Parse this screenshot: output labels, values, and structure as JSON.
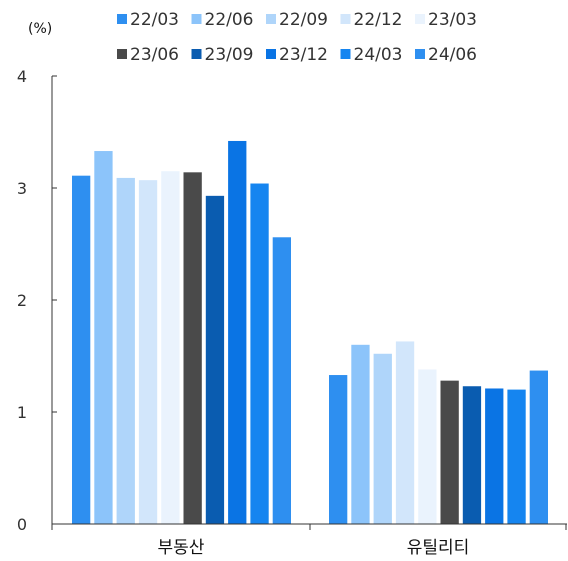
{
  "chart_data": {
    "type": "bar",
    "unit_label": "(%)",
    "categories": [
      "부동산",
      "유틸리티"
    ],
    "ylim": [
      0,
      4
    ],
    "yticks": [
      0,
      1,
      2,
      3,
      4
    ],
    "grid": false,
    "legend_position": "top",
    "series": [
      {
        "name": "22/03",
        "color": "#2E8FF0",
        "values": [
          3.11,
          1.33
        ]
      },
      {
        "name": "22/06",
        "color": "#8CC4FA",
        "values": [
          3.33,
          1.6
        ]
      },
      {
        "name": "22/09",
        "color": "#AFD5FA",
        "values": [
          3.09,
          1.52
        ]
      },
      {
        "name": "22/12",
        "color": "#D2E6FB",
        "values": [
          3.07,
          1.63
        ]
      },
      {
        "name": "23/03",
        "color": "#EAF3FD",
        "values": [
          3.15,
          1.38
        ]
      },
      {
        "name": "23/06",
        "color": "#4A4A4A",
        "values": [
          3.14,
          1.28
        ]
      },
      {
        "name": "23/09",
        "color": "#0A5CB0",
        "values": [
          2.93,
          1.23
        ]
      },
      {
        "name": "23/12",
        "color": "#0A74E4",
        "values": [
          3.42,
          1.21
        ]
      },
      {
        "name": "24/03",
        "color": "#1585F0",
        "values": [
          3.04,
          1.2
        ]
      },
      {
        "name": "24/06",
        "color": "#2E8FF0",
        "values": [
          2.56,
          1.37
        ]
      }
    ]
  }
}
